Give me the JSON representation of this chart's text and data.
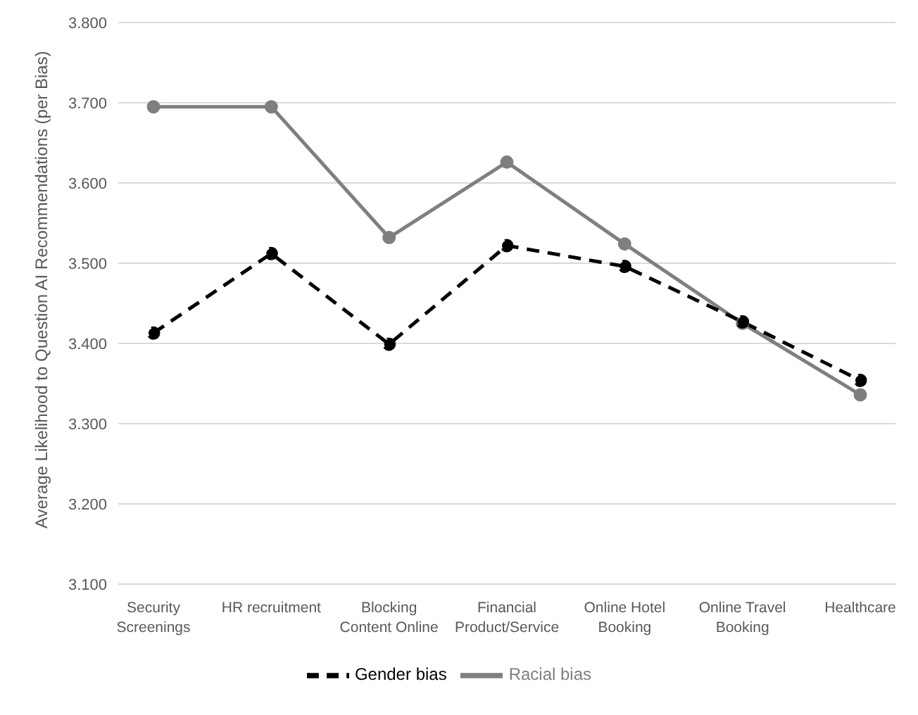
{
  "chart_data": {
    "type": "line",
    "ylabel": "Average Likelihood to Question AI Recommendations (per Bias)",
    "categories": [
      "Security Screenings",
      "HR recruitment",
      "Blocking Content Online",
      "Financial Product/Service",
      "Online Hotel Booking",
      "Online Travel Booking",
      "Healthcare"
    ],
    "series": [
      {
        "name": "Gender bias",
        "color": "#000000",
        "line_style": "dashed",
        "values": [
          3.413,
          3.512,
          3.399,
          3.522,
          3.496,
          3.427,
          3.354
        ]
      },
      {
        "name": "Racial bias",
        "color": "#7f7f7f",
        "line_style": "solid",
        "values": [
          3.695,
          3.695,
          3.532,
          3.626,
          3.524,
          3.425,
          3.336
        ]
      }
    ],
    "ylim": [
      3.1,
      3.8
    ],
    "yticks": [
      {
        "value": 3.1,
        "label": "3.100"
      },
      {
        "value": 3.2,
        "label": "3.200"
      },
      {
        "value": 3.3,
        "label": "3.300"
      },
      {
        "value": 3.4,
        "label": "3.400"
      },
      {
        "value": 3.5,
        "label": "3.500"
      },
      {
        "value": 3.6,
        "label": "3.600"
      },
      {
        "value": 3.7,
        "label": "3.700"
      },
      {
        "value": 3.8,
        "label": "3.800"
      }
    ],
    "grid": "y",
    "legend": "bottom",
    "marker": "circle"
  }
}
